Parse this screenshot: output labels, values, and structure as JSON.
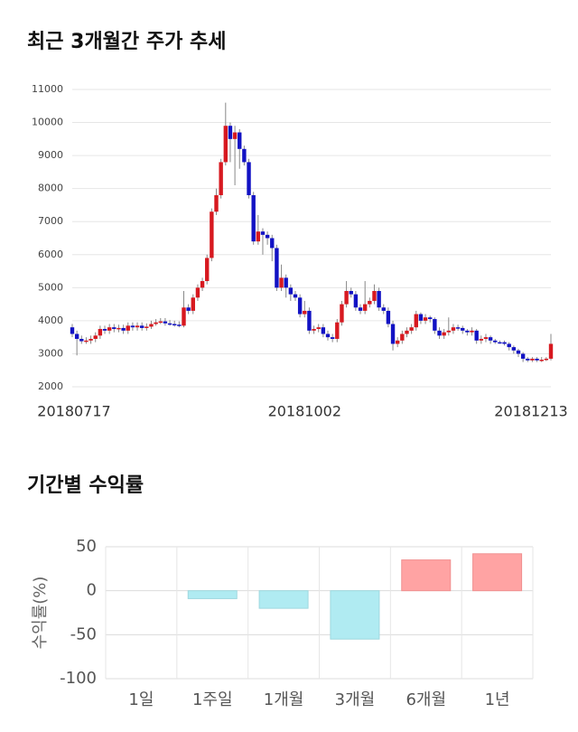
{
  "chart_data": [
    {
      "type": "candlestick",
      "title": "최근 3개월간 주가 추세",
      "categories": [
        "20180717",
        null,
        null,
        null,
        null,
        null,
        null,
        null,
        null,
        null,
        null,
        null,
        null,
        null,
        null,
        null,
        null,
        null,
        null,
        null,
        null,
        null,
        null,
        null,
        null,
        null,
        null,
        null,
        null,
        null,
        null,
        null,
        null,
        null,
        null,
        null,
        null,
        null,
        null,
        null,
        null,
        null,
        null,
        null,
        null,
        null,
        null,
        null,
        null,
        null,
        "20181002",
        null,
        null,
        null,
        null,
        null,
        null,
        null,
        null,
        null,
        null,
        null,
        null,
        null,
        null,
        null,
        null,
        null,
        null,
        null,
        null,
        null,
        null,
        null,
        null,
        null,
        null,
        null,
        null,
        null,
        null,
        null,
        null,
        null,
        null,
        null,
        null,
        null,
        null,
        null,
        null,
        null,
        null,
        null,
        null,
        null,
        null,
        null,
        null,
        null,
        null,
        null,
        null,
        "20181213"
      ],
      "open": [
        3800,
        3600,
        3450,
        3380,
        3400,
        3450,
        3550,
        3750,
        3700,
        3800,
        3750,
        3780,
        3700,
        3850,
        3800,
        3850,
        3780,
        3820,
        3900,
        3950,
        3980,
        3920,
        3900,
        3880,
        3850,
        4400,
        4300,
        4700,
        5000,
        5200,
        5900,
        7300,
        7800,
        8800,
        9900,
        9500,
        9700,
        9200,
        8800,
        7800,
        6400,
        6700,
        6600,
        6500,
        6200,
        5000,
        5300,
        5000,
        4800,
        4700,
        4200,
        4300,
        3700,
        3750,
        3800,
        3600,
        3500,
        3450,
        3950,
        4500,
        4900,
        4800,
        4400,
        4300,
        4500,
        4600,
        4900,
        4400,
        4300,
        3900,
        3300,
        3400,
        3600,
        3700,
        3800,
        4200,
        4000,
        4100,
        4050,
        3700,
        3550,
        3650,
        3700,
        3800,
        3780,
        3700,
        3650,
        3700,
        3400,
        3450,
        3500,
        3400,
        3350,
        3350,
        3300,
        3200,
        3100,
        3000,
        2850,
        2800,
        2850,
        2800,
        2820,
        2850
      ],
      "high": [
        3900,
        3700,
        3550,
        3500,
        3550,
        3650,
        3850,
        3850,
        3900,
        3900,
        3880,
        3880,
        3950,
        3950,
        3950,
        3950,
        3920,
        4000,
        4050,
        4080,
        4080,
        4020,
        4000,
        3980,
        4900,
        4500,
        4800,
        5100,
        5300,
        6000,
        7400,
        8000,
        8900,
        10600,
        10000,
        9900,
        9800,
        9300,
        8900,
        7900,
        7200,
        6800,
        6700,
        6600,
        6300,
        5700,
        5400,
        5100,
        4900,
        4800,
        4600,
        4400,
        3850,
        3900,
        3900,
        3700,
        3600,
        4050,
        4600,
        5200,
        5000,
        4900,
        4500,
        5200,
        4700,
        5100,
        5000,
        4500,
        4400,
        4000,
        3500,
        3700,
        3800,
        3900,
        4300,
        4250,
        4200,
        4150,
        4100,
        3800,
        3750,
        4100,
        3900,
        3880,
        3850,
        3750,
        3800,
        3750,
        3550,
        3600,
        3550,
        3450,
        3400,
        3400,
        3350,
        3250,
        3150,
        3050,
        2900,
        2900,
        2900,
        2900,
        2900,
        3600
      ],
      "low": [
        3500,
        2950,
        3300,
        3300,
        3300,
        3350,
        3450,
        3600,
        3600,
        3650,
        3650,
        3600,
        3600,
        3700,
        3700,
        3700,
        3700,
        3750,
        3850,
        3900,
        3850,
        3850,
        3820,
        3800,
        3800,
        4200,
        4200,
        4600,
        4900,
        5100,
        5800,
        7200,
        7700,
        8700,
        8800,
        8100,
        8600,
        8700,
        7700,
        6300,
        6300,
        6000,
        6300,
        5800,
        4900,
        4900,
        4700,
        4600,
        4600,
        4100,
        4100,
        3600,
        3600,
        3650,
        3500,
        3400,
        3350,
        3350,
        3850,
        4400,
        4700,
        4300,
        4200,
        4200,
        4400,
        4500,
        4300,
        4200,
        3800,
        3100,
        3200,
        3300,
        3500,
        3600,
        3700,
        3900,
        3900,
        3950,
        3600,
        3450,
        3450,
        3550,
        3600,
        3700,
        3600,
        3550,
        3550,
        3300,
        3300,
        3350,
        3300,
        3300,
        3300,
        3250,
        3100,
        3000,
        2900,
        2750,
        2750,
        2750,
        2750,
        2750,
        2780,
        2800
      ],
      "close": [
        3600,
        3450,
        3380,
        3400,
        3450,
        3550,
        3750,
        3700,
        3800,
        3750,
        3780,
        3700,
        3850,
        3800,
        3850,
        3780,
        3820,
        3900,
        3950,
        3980,
        3920,
        3900,
        3880,
        3850,
        4400,
        4300,
        4700,
        5000,
        5200,
        5900,
        7300,
        7800,
        8800,
        9900,
        9500,
        9700,
        9200,
        8800,
        7800,
        6400,
        6700,
        6600,
        6500,
        6200,
        5000,
        5300,
        5000,
        4800,
        4700,
        4200,
        4300,
        3700,
        3750,
        3800,
        3600,
        3500,
        3450,
        3950,
        4500,
        4900,
        4800,
        4400,
        4300,
        4500,
        4600,
        4900,
        4400,
        4300,
        3900,
        3300,
        3400,
        3600,
        3700,
        3800,
        4200,
        4000,
        4100,
        4050,
        3700,
        3550,
        3650,
        3700,
        3800,
        3780,
        3700,
        3650,
        3700,
        3400,
        3450,
        3500,
        3400,
        3350,
        3350,
        3300,
        3200,
        3100,
        3000,
        2850,
        2800,
        2850,
        2800,
        2820,
        2850,
        3300
      ],
      "up_color": "#d71920",
      "down_color": "#1212c4",
      "ylim": [
        2000,
        11000
      ],
      "yticks": [
        2000,
        3000,
        4000,
        5000,
        6000,
        7000,
        8000,
        9000,
        10000,
        11000
      ],
      "grid": true
    },
    {
      "type": "bar",
      "title": "기간별 수익률",
      "ylabel": "수익률(%)",
      "categories": [
        "1일",
        "1주일",
        "1개월",
        "3개월",
        "6개월",
        "1년"
      ],
      "values": [
        0,
        -9,
        -20,
        -55,
        35,
        42
      ],
      "positive_color": "#ffa3a3",
      "negative_color": "#b0ebf2",
      "ylim": [
        -100,
        50
      ],
      "yticks": [
        50,
        0,
        -50,
        -100
      ],
      "grid": true
    }
  ]
}
